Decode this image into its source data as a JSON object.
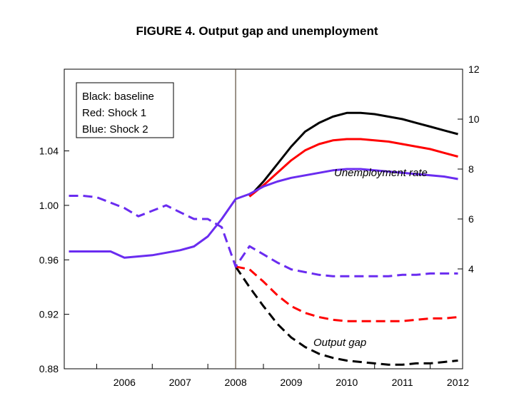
{
  "chart_data": {
    "type": "line",
    "title": "FIGURE 4. Output gap and unemployment",
    "x_tick_labels": [
      "2006",
      "2007",
      "2008",
      "2009",
      "2010",
      "2011",
      "2012"
    ],
    "x_range": [
      "2005-06",
      "2012-08"
    ],
    "y_left": {
      "range": [
        0.88,
        1.1
      ],
      "ticks": [
        "0.88",
        "0.92",
        "0.96",
        "1.00",
        "1.04"
      ]
    },
    "y_right": {
      "range": [
        0,
        12
      ],
      "ticks": [
        "4",
        "6",
        "8",
        "10",
        "12"
      ]
    },
    "vertical_marker_x": "2008-Q3",
    "legend_box": [
      "Black: baseline",
      "Red: Shock 1",
      "Blue: Shock 2"
    ],
    "annotations": {
      "unemployment": "Unemployment rate",
      "output_gap": "Output gap"
    },
    "colors": {
      "baseline": "#000000",
      "shock1": "#ff0000",
      "shock2": "#6a2cf0"
    },
    "series": [
      {
        "name": "Black: baseline",
        "axis": "right",
        "style": "solid",
        "color": "#000000",
        "points": [
          [
            "2008-Q4",
            6.9
          ],
          [
            "2009-Q1",
            7.5
          ],
          [
            "2009-Q2",
            8.2
          ],
          [
            "2009-Q3",
            8.9
          ],
          [
            "2009-Q4",
            9.5
          ],
          [
            "2010-Q1",
            9.85
          ],
          [
            "2010-Q2",
            10.1
          ],
          [
            "2010-Q3",
            10.25
          ],
          [
            "2010-Q4",
            10.25
          ],
          [
            "2011-Q1",
            10.2
          ],
          [
            "2011-Q2",
            10.1
          ],
          [
            "2011-Q3",
            10.0
          ],
          [
            "2011-Q4",
            9.85
          ],
          [
            "2012-Q1",
            9.7
          ],
          [
            "2012-Q2",
            9.55
          ],
          [
            "2012-Q3",
            9.4
          ]
        ]
      },
      {
        "name": "Red: Shock 1",
        "axis": "right",
        "style": "solid",
        "color": "#ff0000",
        "points": [
          [
            "2008-Q4",
            6.9
          ],
          [
            "2009-Q1",
            7.35
          ],
          [
            "2009-Q2",
            7.85
          ],
          [
            "2009-Q3",
            8.35
          ],
          [
            "2009-Q4",
            8.75
          ],
          [
            "2010-Q1",
            9.0
          ],
          [
            "2010-Q2",
            9.15
          ],
          [
            "2010-Q3",
            9.2
          ],
          [
            "2010-Q4",
            9.2
          ],
          [
            "2011-Q1",
            9.15
          ],
          [
            "2011-Q2",
            9.1
          ],
          [
            "2011-Q3",
            9.0
          ],
          [
            "2011-Q4",
            8.9
          ],
          [
            "2012-Q1",
            8.8
          ],
          [
            "2012-Q2",
            8.65
          ],
          [
            "2012-Q3",
            8.5
          ]
        ]
      },
      {
        "name": "Blue: Shock 2",
        "axis": "right",
        "style": "solid",
        "color": "#6a2cf0",
        "points": [
          [
            "2005-Q3",
            4.7
          ],
          [
            "2005-Q4",
            4.7
          ],
          [
            "2006-Q1",
            4.7
          ],
          [
            "2006-Q2",
            4.7
          ],
          [
            "2006-Q3",
            4.45
          ],
          [
            "2006-Q4",
            4.5
          ],
          [
            "2007-Q1",
            4.55
          ],
          [
            "2007-Q2",
            4.65
          ],
          [
            "2007-Q3",
            4.75
          ],
          [
            "2007-Q4",
            4.9
          ],
          [
            "2008-Q1",
            5.3
          ],
          [
            "2008-Q2",
            6.0
          ],
          [
            "2008-Q3",
            6.8
          ],
          [
            "2008-Q4",
            7.0
          ],
          [
            "2009-Q1",
            7.3
          ],
          [
            "2009-Q2",
            7.5
          ],
          [
            "2009-Q3",
            7.65
          ],
          [
            "2009-Q4",
            7.75
          ],
          [
            "2010-Q1",
            7.85
          ],
          [
            "2010-Q2",
            7.95
          ],
          [
            "2010-Q3",
            8.0
          ],
          [
            "2010-Q4",
            8.0
          ],
          [
            "2011-Q1",
            7.95
          ],
          [
            "2011-Q2",
            7.9
          ],
          [
            "2011-Q3",
            7.85
          ],
          [
            "2011-Q4",
            7.8
          ],
          [
            "2012-Q1",
            7.75
          ],
          [
            "2012-Q2",
            7.7
          ],
          [
            "2012-Q3",
            7.6
          ]
        ]
      },
      {
        "name": "Black: baseline",
        "axis": "left",
        "style": "dashed",
        "color": "#000000",
        "points": [
          [
            "2008-Q3",
            0.955
          ],
          [
            "2008-Q4",
            0.94
          ],
          [
            "2009-Q1",
            0.926
          ],
          [
            "2009-Q2",
            0.913
          ],
          [
            "2009-Q3",
            0.903
          ],
          [
            "2009-Q4",
            0.896
          ],
          [
            "2010-Q1",
            0.891
          ],
          [
            "2010-Q2",
            0.888
          ],
          [
            "2010-Q3",
            0.886
          ],
          [
            "2010-Q4",
            0.885
          ],
          [
            "2011-Q1",
            0.884
          ],
          [
            "2011-Q2",
            0.883
          ],
          [
            "2011-Q3",
            0.883
          ],
          [
            "2011-Q4",
            0.884
          ],
          [
            "2012-Q1",
            0.884
          ],
          [
            "2012-Q2",
            0.885
          ],
          [
            "2012-Q3",
            0.886
          ]
        ]
      },
      {
        "name": "Red: Shock 1",
        "axis": "left",
        "style": "dashed",
        "color": "#ff0000",
        "points": [
          [
            "2008-Q3",
            0.955
          ],
          [
            "2008-Q4",
            0.953
          ],
          [
            "2009-Q1",
            0.944
          ],
          [
            "2009-Q2",
            0.934
          ],
          [
            "2009-Q3",
            0.926
          ],
          [
            "2009-Q4",
            0.921
          ],
          [
            "2010-Q1",
            0.918
          ],
          [
            "2010-Q2",
            0.916
          ],
          [
            "2010-Q3",
            0.915
          ],
          [
            "2010-Q4",
            0.915
          ],
          [
            "2011-Q1",
            0.915
          ],
          [
            "2011-Q2",
            0.915
          ],
          [
            "2011-Q3",
            0.915
          ],
          [
            "2011-Q4",
            0.916
          ],
          [
            "2012-Q1",
            0.917
          ],
          [
            "2012-Q2",
            0.917
          ],
          [
            "2012-Q3",
            0.918
          ]
        ]
      },
      {
        "name": "Blue: Shock 2",
        "axis": "left",
        "style": "dashed",
        "color": "#6a2cf0",
        "points": [
          [
            "2005-Q3",
            1.007
          ],
          [
            "2005-Q4",
            1.007
          ],
          [
            "2006-Q1",
            1.006
          ],
          [
            "2006-Q2",
            1.002
          ],
          [
            "2006-Q3",
            0.998
          ],
          [
            "2006-Q4",
            0.992
          ],
          [
            "2007-Q1",
            0.996
          ],
          [
            "2007-Q2",
            1.0
          ],
          [
            "2007-Q3",
            0.995
          ],
          [
            "2007-Q4",
            0.99
          ],
          [
            "2008-Q1",
            0.99
          ],
          [
            "2008-Q2",
            0.984
          ],
          [
            "2008-Q3",
            0.955
          ],
          [
            "2008-Q4",
            0.97
          ],
          [
            "2009-Q1",
            0.964
          ],
          [
            "2009-Q2",
            0.958
          ],
          [
            "2009-Q3",
            0.953
          ],
          [
            "2009-Q4",
            0.951
          ],
          [
            "2010-Q1",
            0.949
          ],
          [
            "2010-Q2",
            0.948
          ],
          [
            "2010-Q3",
            0.948
          ],
          [
            "2010-Q4",
            0.948
          ],
          [
            "2011-Q1",
            0.948
          ],
          [
            "2011-Q2",
            0.948
          ],
          [
            "2011-Q3",
            0.949
          ],
          [
            "2011-Q4",
            0.949
          ],
          [
            "2012-Q1",
            0.95
          ],
          [
            "2012-Q2",
            0.95
          ],
          [
            "2012-Q3",
            0.95
          ]
        ]
      }
    ]
  }
}
